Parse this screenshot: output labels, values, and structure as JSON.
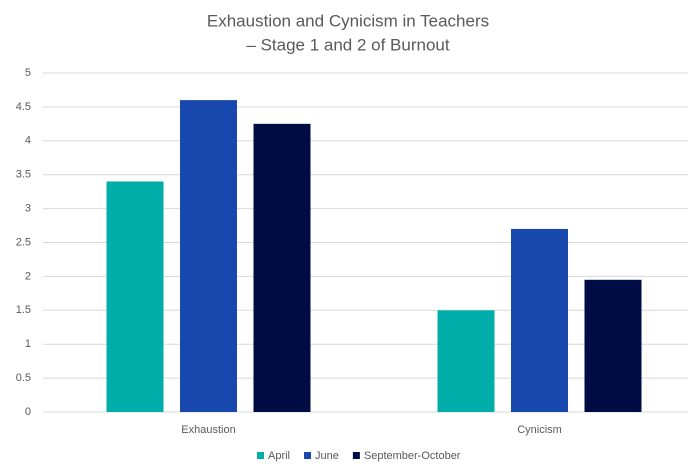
{
  "chart_data": {
    "type": "bar",
    "title": [
      "Exhaustion and Cynicism in Teachers",
      "– Stage 1 and 2 of Burnout"
    ],
    "categories": [
      "Exhaustion",
      "Cynicism"
    ],
    "series": [
      {
        "name": "April",
        "color": "#00ada9",
        "values": [
          3.4,
          1.5
        ]
      },
      {
        "name": "June",
        "color": "#1847ad",
        "values": [
          4.6,
          2.7
        ]
      },
      {
        "name": "September-October",
        "color": "#000c44",
        "values": [
          4.25,
          1.95
        ]
      }
    ],
    "ylim": [
      0,
      5
    ],
    "yticks": [
      0,
      0.5,
      1,
      1.5,
      2,
      2.5,
      3,
      3.5,
      4,
      4.5,
      5
    ],
    "grid": true,
    "legend": "bottom"
  }
}
